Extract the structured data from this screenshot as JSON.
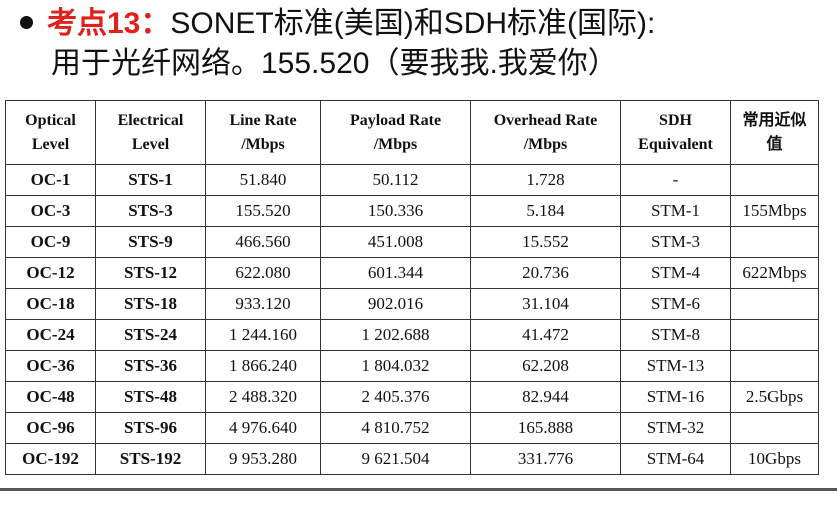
{
  "heading": {
    "label": "考点13：",
    "line1": "SONET标准(美国)和SDH标准(国际):",
    "line2": "用于光纤网络。155.520（要我我.我爱你）"
  },
  "table": {
    "columns": [
      [
        "Optical",
        "Level"
      ],
      [
        "Electrical",
        "Level"
      ],
      [
        "Line Rate",
        "/Mbps"
      ],
      [
        "Payload Rate",
        "/Mbps"
      ],
      [
        "Overhead Rate",
        "/Mbps"
      ],
      [
        "SDH",
        "Equivalent"
      ],
      [
        "常用近似",
        "值"
      ]
    ],
    "rows": [
      [
        "OC-1",
        "STS-1",
        "51.840",
        "50.112",
        "1.728",
        "-"
      ],
      [
        "OC-3",
        "STS-3",
        "155.520",
        "150.336",
        "5.184",
        "STM-1",
        "155Mbps"
      ],
      [
        "OC-9",
        "STS-9",
        "466.560",
        "451.008",
        "15.552",
        "STM-3"
      ],
      [
        "OC-12",
        "STS-12",
        "622.080",
        "601.344",
        "20.736",
        "STM-4",
        "622Mbps"
      ],
      [
        "OC-18",
        "STS-18",
        "933.120",
        "902.016",
        "31.104",
        "STM-6"
      ],
      [
        "OC-24",
        "STS-24",
        "1 244.160",
        "1 202.688",
        "41.472",
        "STM-8"
      ],
      [
        "OC-36",
        "STS-36",
        "1 866.240",
        "1 804.032",
        "62.208",
        "STM-13"
      ],
      [
        "OC-48",
        "STS-48",
        "2 488.320",
        "2 405.376",
        "82.944",
        "STM-16",
        "2.5Gbps"
      ],
      [
        "OC-96",
        "STS-96",
        "4 976.640",
        "4 810.752",
        "165.888",
        "STM-32"
      ],
      [
        "OC-192",
        "STS-192",
        "9 953.280",
        "9 621.504",
        "331.776",
        "STM-64",
        "10Gbps"
      ]
    ]
  }
}
